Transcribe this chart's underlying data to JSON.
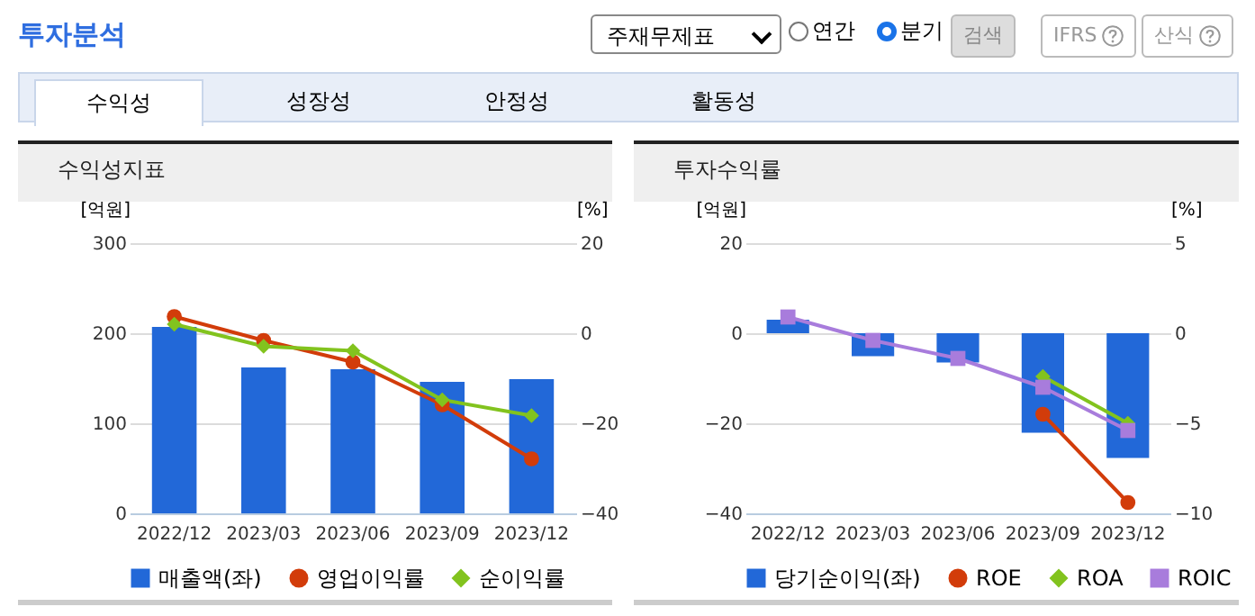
{
  "chart_data": [
    {
      "type": "other",
      "title": "투자분석",
      "annotations": [
        "주재무제표",
        "연간",
        "분기",
        "검색",
        "IFRS",
        "산식",
        "수익성",
        "성장성",
        "안정성",
        "활동성"
      ]
    },
    {
      "type": "bar",
      "title": "수익성지표",
      "ylabel": "[억원]",
      "y2label": "[%]",
      "categories": [
        "2022/12",
        "2023/03",
        "2023/06",
        "2023/09",
        "2023/12"
      ],
      "ylim": [
        0,
        300
      ],
      "yticks": [
        0,
        100,
        200,
        300
      ],
      "y2lim": [
        -40,
        20
      ],
      "y2ticks": [
        -40,
        -20,
        0,
        20
      ],
      "grid": "y",
      "legend": "bottom",
      "series": [
        {
          "name": "매출액(좌)",
          "color": "#2268d8",
          "values": [
            207,
            162,
            160,
            146,
            149
          ]
        },
        {
          "name": "영업이익률",
          "type": "line",
          "axis": "y2",
          "marker": "circle",
          "color": "#d23c0a",
          "values": [
            3.7,
            -1.6,
            -6.4,
            -15.9,
            -27.9
          ]
        },
        {
          "name": "순이익률",
          "type": "line",
          "axis": "y2",
          "marker": "diamond",
          "color": "#82c31e",
          "values": [
            2.0,
            -2.9,
            -3.9,
            -14.8,
            -18.3
          ]
        }
      ]
    },
    {
      "type": "bar",
      "title": "투자수익률",
      "ylabel": "[억원]",
      "y2label": "[%]",
      "categories": [
        "2022/12",
        "2023/03",
        "2023/06",
        "2023/09",
        "2023/12"
      ],
      "ylim": [
        -40,
        20
      ],
      "yticks": [
        -40,
        -20,
        0,
        20
      ],
      "y2lim": [
        -10,
        5
      ],
      "y2ticks": [
        -10,
        -5,
        0,
        5
      ],
      "grid": "y",
      "legend": "bottom",
      "series": [
        {
          "name": "당기순이익(좌)",
          "color": "#2268d8",
          "values": [
            3,
            -5.1,
            -6.5,
            -22.1,
            -27.7
          ]
        },
        {
          "name": "ROE",
          "type": "line",
          "axis": "y2",
          "marker": "circle",
          "color": "#d23c0a",
          "values": [
            null,
            null,
            null,
            -4.5,
            -9.4
          ]
        },
        {
          "name": "ROA",
          "type": "line",
          "axis": "y2",
          "marker": "diamond",
          "color": "#82c31e",
          "values": [
            null,
            null,
            null,
            -2.4,
            -5.0
          ]
        },
        {
          "name": "ROIC",
          "type": "line",
          "axis": "y2",
          "marker": "square",
          "color": "#a87cdc",
          "values": [
            0.9,
            -0.4,
            -1.4,
            -3.0,
            -5.4
          ]
        }
      ]
    }
  ]
}
